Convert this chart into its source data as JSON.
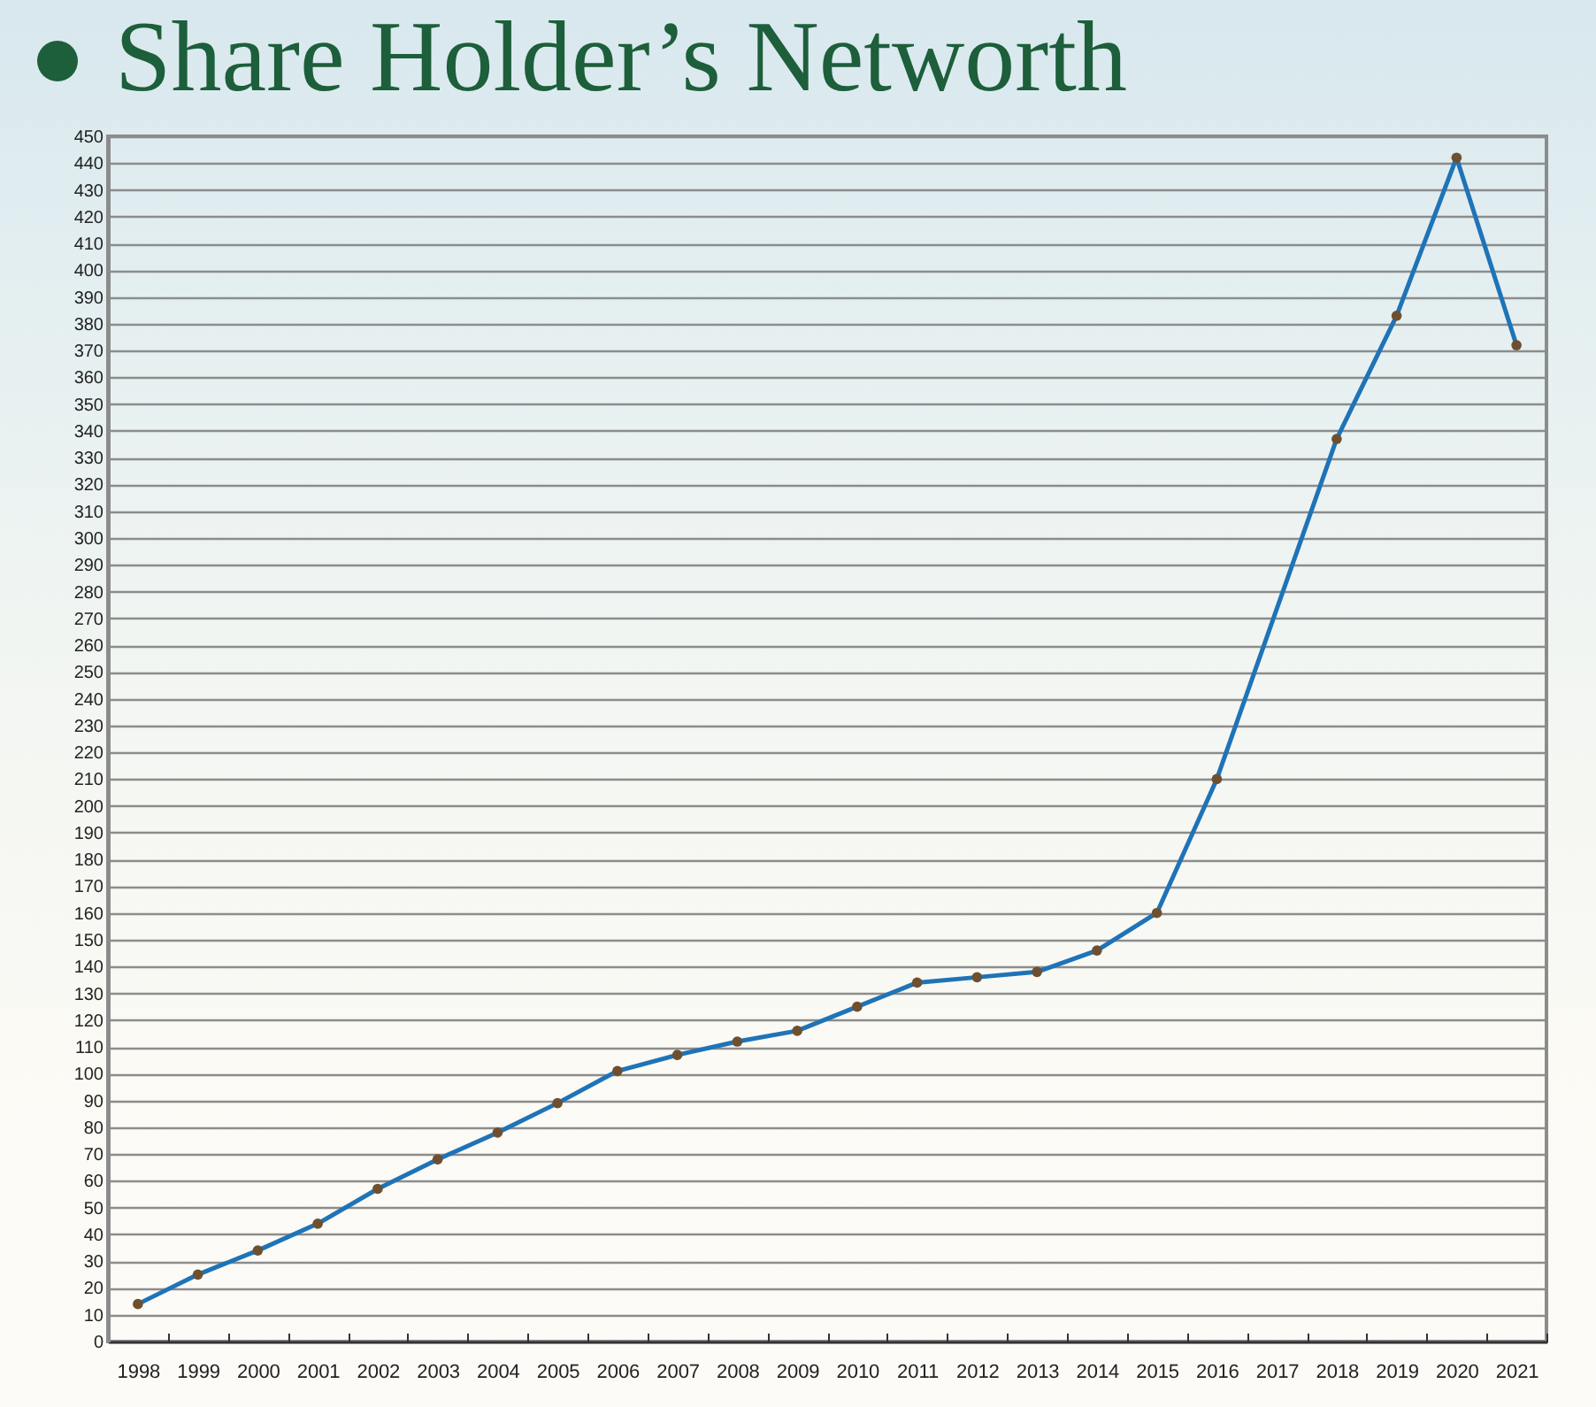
{
  "chart_data": {
    "type": "line",
    "title": "Share Holder’s Networth",
    "categories": [
      "1998",
      "1999",
      "2000",
      "2001",
      "2002",
      "2003",
      "2004",
      "2005",
      "2006",
      "2007",
      "2008",
      "2009",
      "2010",
      "2011",
      "2012",
      "2013",
      "2014",
      "2015",
      "2016",
      "2017",
      "2018",
      "2019",
      "2020",
      "2021"
    ],
    "series": [
      {
        "color": "#1f73b7",
        "values": [
          14,
          25,
          34,
          44,
          57,
          68,
          78,
          89,
          101,
          107,
          112,
          116,
          125,
          134,
          136,
          138,
          146,
          160,
          210,
          null,
          337,
          383,
          442,
          372
        ]
      }
    ],
    "ylim": [
      0,
      450
    ],
    "yticks": [
      0,
      10,
      20,
      30,
      40,
      50,
      60,
      70,
      80,
      90,
      100,
      110,
      120,
      130,
      140,
      150,
      160,
      170,
      180,
      190,
      200,
      210,
      220,
      230,
      240,
      250,
      260,
      270,
      280,
      290,
      300,
      310,
      320,
      330,
      340,
      350,
      360,
      370,
      380,
      390,
      400,
      410,
      420,
      430,
      440,
      450
    ],
    "grid": "y",
    "marker": "circle",
    "line_style": "solid"
  }
}
